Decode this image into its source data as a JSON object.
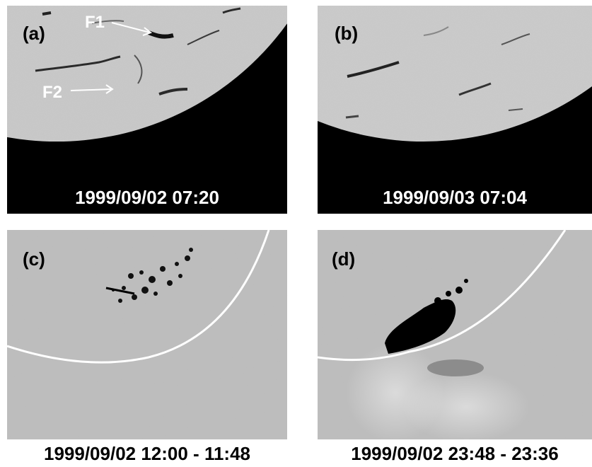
{
  "panels": {
    "a": {
      "label": "(a)",
      "timestamp": "1999/09/02 07:20",
      "feature1": "F1",
      "feature2": "F2"
    },
    "b": {
      "label": "(b)",
      "timestamp": "1999/09/03 07:04"
    },
    "c": {
      "label": "(c)",
      "timestamp": "1999/09/02 12:00 - 11:48"
    },
    "d": {
      "label": "(d)",
      "timestamp": "1999/09/02 23:48 - 23:36"
    }
  }
}
